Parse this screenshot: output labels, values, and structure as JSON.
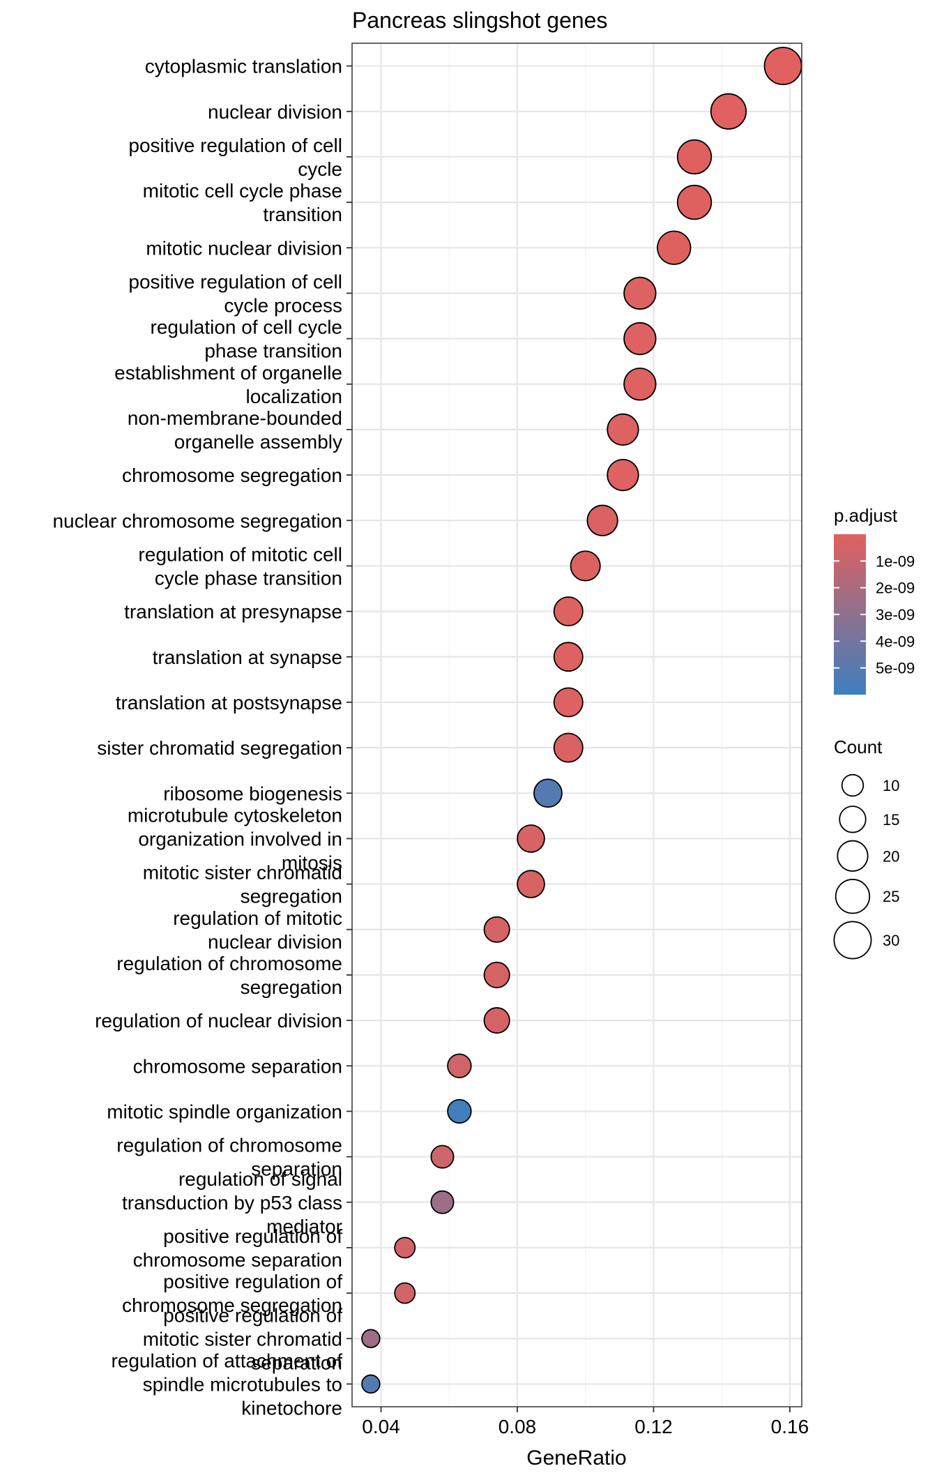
{
  "chart_data": {
    "type": "scatter",
    "title": "Pancreas slingshot genes",
    "xlabel": "GeneRatio",
    "ylabel": "",
    "xlim": [
      0.0315,
      0.1635
    ],
    "x_ticks": [
      0.04,
      0.08,
      0.12,
      0.16
    ],
    "x_tick_labels": [
      "0.04",
      "0.08",
      "0.12",
      "0.16"
    ],
    "grid": true,
    "legend_placement": "right",
    "categories": [
      "cytoplasmic translation",
      "nuclear division",
      "positive regulation of cell\ncycle",
      "mitotic cell cycle phase\ntransition",
      "mitotic nuclear division",
      "positive regulation of cell\ncycle process",
      "regulation of cell cycle\nphase transition",
      "establishment of organelle\nlocalization",
      "non-membrane-bounded\norganelle assembly",
      "chromosome segregation",
      "nuclear chromosome segregation",
      "regulation of mitotic cell\ncycle phase transition",
      "translation at presynapse",
      "translation at synapse",
      "translation at postsynapse",
      "sister chromatid segregation",
      "ribosome biogenesis",
      "microtubule cytoskeleton\norganization involved in\nmitosis",
      "mitotic sister chromatid\nsegregation",
      "regulation of mitotic\nnuclear division",
      "regulation of chromosome\nsegregation",
      "regulation of nuclear division",
      "chromosome separation",
      "mitotic spindle organization",
      "regulation of chromosome\nseparation",
      "regulation of signal\ntransduction by p53 class\nmediator",
      "positive regulation of\nchromosome separation",
      "positive regulation of\nchromosome segregation",
      "positive regulation of\nmitotic sister chromatid\nseparation",
      "regulation of attachment of\nspindle microtubules to\nkinetochore"
    ],
    "points": [
      {
        "gene_ratio": 0.158,
        "count": 30,
        "p_adjust": 1e-11
      },
      {
        "gene_ratio": 0.142,
        "count": 27,
        "p_adjust": 1e-11
      },
      {
        "gene_ratio": 0.132,
        "count": 25,
        "p_adjust": 2e-11
      },
      {
        "gene_ratio": 0.132,
        "count": 25,
        "p_adjust": 2e-11
      },
      {
        "gene_ratio": 0.126,
        "count": 24,
        "p_adjust": 3e-11
      },
      {
        "gene_ratio": 0.116,
        "count": 22,
        "p_adjust": 1e-10
      },
      {
        "gene_ratio": 0.116,
        "count": 22,
        "p_adjust": 1e-10
      },
      {
        "gene_ratio": 0.116,
        "count": 22,
        "p_adjust": 1e-10
      },
      {
        "gene_ratio": 0.111,
        "count": 21,
        "p_adjust": 1e-10
      },
      {
        "gene_ratio": 0.111,
        "count": 21,
        "p_adjust": 1e-10
      },
      {
        "gene_ratio": 0.105,
        "count": 20,
        "p_adjust": 2e-10
      },
      {
        "gene_ratio": 0.1,
        "count": 19,
        "p_adjust": 2e-10
      },
      {
        "gene_ratio": 0.095,
        "count": 18,
        "p_adjust": 1e-10
      },
      {
        "gene_ratio": 0.095,
        "count": 18,
        "p_adjust": 1e-10
      },
      {
        "gene_ratio": 0.095,
        "count": 18,
        "p_adjust": 1e-10
      },
      {
        "gene_ratio": 0.095,
        "count": 18,
        "p_adjust": 2e-10
      },
      {
        "gene_ratio": 0.089,
        "count": 17,
        "p_adjust": 5.2e-09
      },
      {
        "gene_ratio": 0.084,
        "count": 16,
        "p_adjust": 3e-10
      },
      {
        "gene_ratio": 0.084,
        "count": 16,
        "p_adjust": 3e-10
      },
      {
        "gene_ratio": 0.074,
        "count": 14,
        "p_adjust": 4e-10
      },
      {
        "gene_ratio": 0.074,
        "count": 14,
        "p_adjust": 4e-10
      },
      {
        "gene_ratio": 0.074,
        "count": 14,
        "p_adjust": 4e-10
      },
      {
        "gene_ratio": 0.063,
        "count": 12,
        "p_adjust": 6e-10
      },
      {
        "gene_ratio": 0.063,
        "count": 12,
        "p_adjust": 5.9e-09
      },
      {
        "gene_ratio": 0.058,
        "count": 11,
        "p_adjust": 7e-10
      },
      {
        "gene_ratio": 0.058,
        "count": 11,
        "p_adjust": 2.5e-09
      },
      {
        "gene_ratio": 0.047,
        "count": 9,
        "p_adjust": 5e-10
      },
      {
        "gene_ratio": 0.047,
        "count": 9,
        "p_adjust": 6e-10
      },
      {
        "gene_ratio": 0.037,
        "count": 7,
        "p_adjust": 2.4e-09
      },
      {
        "gene_ratio": 0.037,
        "count": 7,
        "p_adjust": 5.2e-09
      }
    ],
    "color_legend": {
      "title": "p.adjust",
      "range": [
        0,
        6e-09
      ],
      "low_color": "#e0615f",
      "high_color": "#3d7fbe",
      "ticks": [
        1e-09,
        2e-09,
        3e-09,
        4e-09,
        5e-09
      ],
      "tick_labels": [
        "1e-09",
        "2e-09",
        "3e-09",
        "4e-09",
        "5e-09"
      ]
    },
    "size_legend": {
      "title": "Count",
      "values": [
        10,
        15,
        20,
        25,
        30
      ],
      "labels": [
        "10",
        "15",
        "20",
        "25",
        "30"
      ]
    }
  }
}
